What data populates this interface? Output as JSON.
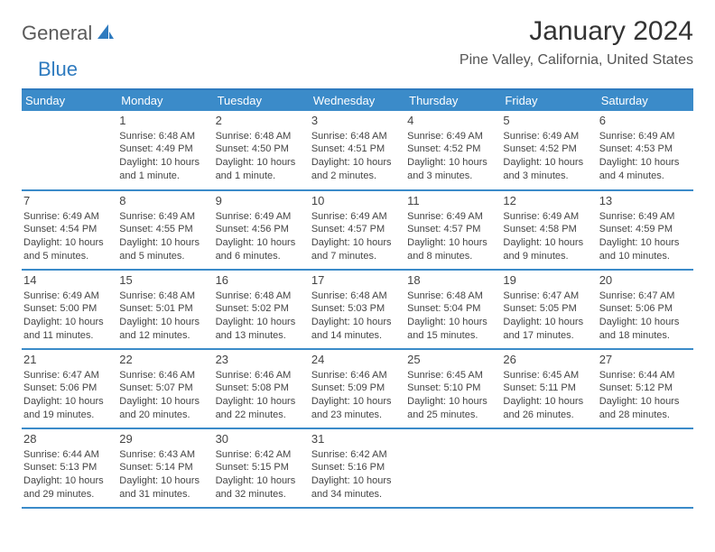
{
  "logo": {
    "part1": "General",
    "part2": "Blue"
  },
  "title": "January 2024",
  "location": "Pine Valley, California, United States",
  "colors": {
    "header_bg": "#3b8bc9",
    "header_text": "#ffffff",
    "rule": "#3b8bc9",
    "body_text": "#444444",
    "title_text": "#333333",
    "logo_gray": "#5a5a5a",
    "logo_blue": "#2f7bbf",
    "background": "#ffffff"
  },
  "typography": {
    "title_fontsize": 30,
    "location_fontsize": 16,
    "dayheader_fontsize": 13,
    "daynum_fontsize": 13,
    "detail_fontsize": 11
  },
  "day_headers": [
    "Sunday",
    "Monday",
    "Tuesday",
    "Wednesday",
    "Thursday",
    "Friday",
    "Saturday"
  ],
  "weeks": [
    [
      {
        "num": "",
        "sunrise": "",
        "sunset": "",
        "daylight": ""
      },
      {
        "num": "1",
        "sunrise": "Sunrise: 6:48 AM",
        "sunset": "Sunset: 4:49 PM",
        "daylight": "Daylight: 10 hours and 1 minute."
      },
      {
        "num": "2",
        "sunrise": "Sunrise: 6:48 AM",
        "sunset": "Sunset: 4:50 PM",
        "daylight": "Daylight: 10 hours and 1 minute."
      },
      {
        "num": "3",
        "sunrise": "Sunrise: 6:48 AM",
        "sunset": "Sunset: 4:51 PM",
        "daylight": "Daylight: 10 hours and 2 minutes."
      },
      {
        "num": "4",
        "sunrise": "Sunrise: 6:49 AM",
        "sunset": "Sunset: 4:52 PM",
        "daylight": "Daylight: 10 hours and 3 minutes."
      },
      {
        "num": "5",
        "sunrise": "Sunrise: 6:49 AM",
        "sunset": "Sunset: 4:52 PM",
        "daylight": "Daylight: 10 hours and 3 minutes."
      },
      {
        "num": "6",
        "sunrise": "Sunrise: 6:49 AM",
        "sunset": "Sunset: 4:53 PM",
        "daylight": "Daylight: 10 hours and 4 minutes."
      }
    ],
    [
      {
        "num": "7",
        "sunrise": "Sunrise: 6:49 AM",
        "sunset": "Sunset: 4:54 PM",
        "daylight": "Daylight: 10 hours and 5 minutes."
      },
      {
        "num": "8",
        "sunrise": "Sunrise: 6:49 AM",
        "sunset": "Sunset: 4:55 PM",
        "daylight": "Daylight: 10 hours and 5 minutes."
      },
      {
        "num": "9",
        "sunrise": "Sunrise: 6:49 AM",
        "sunset": "Sunset: 4:56 PM",
        "daylight": "Daylight: 10 hours and 6 minutes."
      },
      {
        "num": "10",
        "sunrise": "Sunrise: 6:49 AM",
        "sunset": "Sunset: 4:57 PM",
        "daylight": "Daylight: 10 hours and 7 minutes."
      },
      {
        "num": "11",
        "sunrise": "Sunrise: 6:49 AM",
        "sunset": "Sunset: 4:57 PM",
        "daylight": "Daylight: 10 hours and 8 minutes."
      },
      {
        "num": "12",
        "sunrise": "Sunrise: 6:49 AM",
        "sunset": "Sunset: 4:58 PM",
        "daylight": "Daylight: 10 hours and 9 minutes."
      },
      {
        "num": "13",
        "sunrise": "Sunrise: 6:49 AM",
        "sunset": "Sunset: 4:59 PM",
        "daylight": "Daylight: 10 hours and 10 minutes."
      }
    ],
    [
      {
        "num": "14",
        "sunrise": "Sunrise: 6:49 AM",
        "sunset": "Sunset: 5:00 PM",
        "daylight": "Daylight: 10 hours and 11 minutes."
      },
      {
        "num": "15",
        "sunrise": "Sunrise: 6:48 AM",
        "sunset": "Sunset: 5:01 PM",
        "daylight": "Daylight: 10 hours and 12 minutes."
      },
      {
        "num": "16",
        "sunrise": "Sunrise: 6:48 AM",
        "sunset": "Sunset: 5:02 PM",
        "daylight": "Daylight: 10 hours and 13 minutes."
      },
      {
        "num": "17",
        "sunrise": "Sunrise: 6:48 AM",
        "sunset": "Sunset: 5:03 PM",
        "daylight": "Daylight: 10 hours and 14 minutes."
      },
      {
        "num": "18",
        "sunrise": "Sunrise: 6:48 AM",
        "sunset": "Sunset: 5:04 PM",
        "daylight": "Daylight: 10 hours and 15 minutes."
      },
      {
        "num": "19",
        "sunrise": "Sunrise: 6:47 AM",
        "sunset": "Sunset: 5:05 PM",
        "daylight": "Daylight: 10 hours and 17 minutes."
      },
      {
        "num": "20",
        "sunrise": "Sunrise: 6:47 AM",
        "sunset": "Sunset: 5:06 PM",
        "daylight": "Daylight: 10 hours and 18 minutes."
      }
    ],
    [
      {
        "num": "21",
        "sunrise": "Sunrise: 6:47 AM",
        "sunset": "Sunset: 5:06 PM",
        "daylight": "Daylight: 10 hours and 19 minutes."
      },
      {
        "num": "22",
        "sunrise": "Sunrise: 6:46 AM",
        "sunset": "Sunset: 5:07 PM",
        "daylight": "Daylight: 10 hours and 20 minutes."
      },
      {
        "num": "23",
        "sunrise": "Sunrise: 6:46 AM",
        "sunset": "Sunset: 5:08 PM",
        "daylight": "Daylight: 10 hours and 22 minutes."
      },
      {
        "num": "24",
        "sunrise": "Sunrise: 6:46 AM",
        "sunset": "Sunset: 5:09 PM",
        "daylight": "Daylight: 10 hours and 23 minutes."
      },
      {
        "num": "25",
        "sunrise": "Sunrise: 6:45 AM",
        "sunset": "Sunset: 5:10 PM",
        "daylight": "Daylight: 10 hours and 25 minutes."
      },
      {
        "num": "26",
        "sunrise": "Sunrise: 6:45 AM",
        "sunset": "Sunset: 5:11 PM",
        "daylight": "Daylight: 10 hours and 26 minutes."
      },
      {
        "num": "27",
        "sunrise": "Sunrise: 6:44 AM",
        "sunset": "Sunset: 5:12 PM",
        "daylight": "Daylight: 10 hours and 28 minutes."
      }
    ],
    [
      {
        "num": "28",
        "sunrise": "Sunrise: 6:44 AM",
        "sunset": "Sunset: 5:13 PM",
        "daylight": "Daylight: 10 hours and 29 minutes."
      },
      {
        "num": "29",
        "sunrise": "Sunrise: 6:43 AM",
        "sunset": "Sunset: 5:14 PM",
        "daylight": "Daylight: 10 hours and 31 minutes."
      },
      {
        "num": "30",
        "sunrise": "Sunrise: 6:42 AM",
        "sunset": "Sunset: 5:15 PM",
        "daylight": "Daylight: 10 hours and 32 minutes."
      },
      {
        "num": "31",
        "sunrise": "Sunrise: 6:42 AM",
        "sunset": "Sunset: 5:16 PM",
        "daylight": "Daylight: 10 hours and 34 minutes."
      },
      {
        "num": "",
        "sunrise": "",
        "sunset": "",
        "daylight": ""
      },
      {
        "num": "",
        "sunrise": "",
        "sunset": "",
        "daylight": ""
      },
      {
        "num": "",
        "sunrise": "",
        "sunset": "",
        "daylight": ""
      }
    ]
  ]
}
